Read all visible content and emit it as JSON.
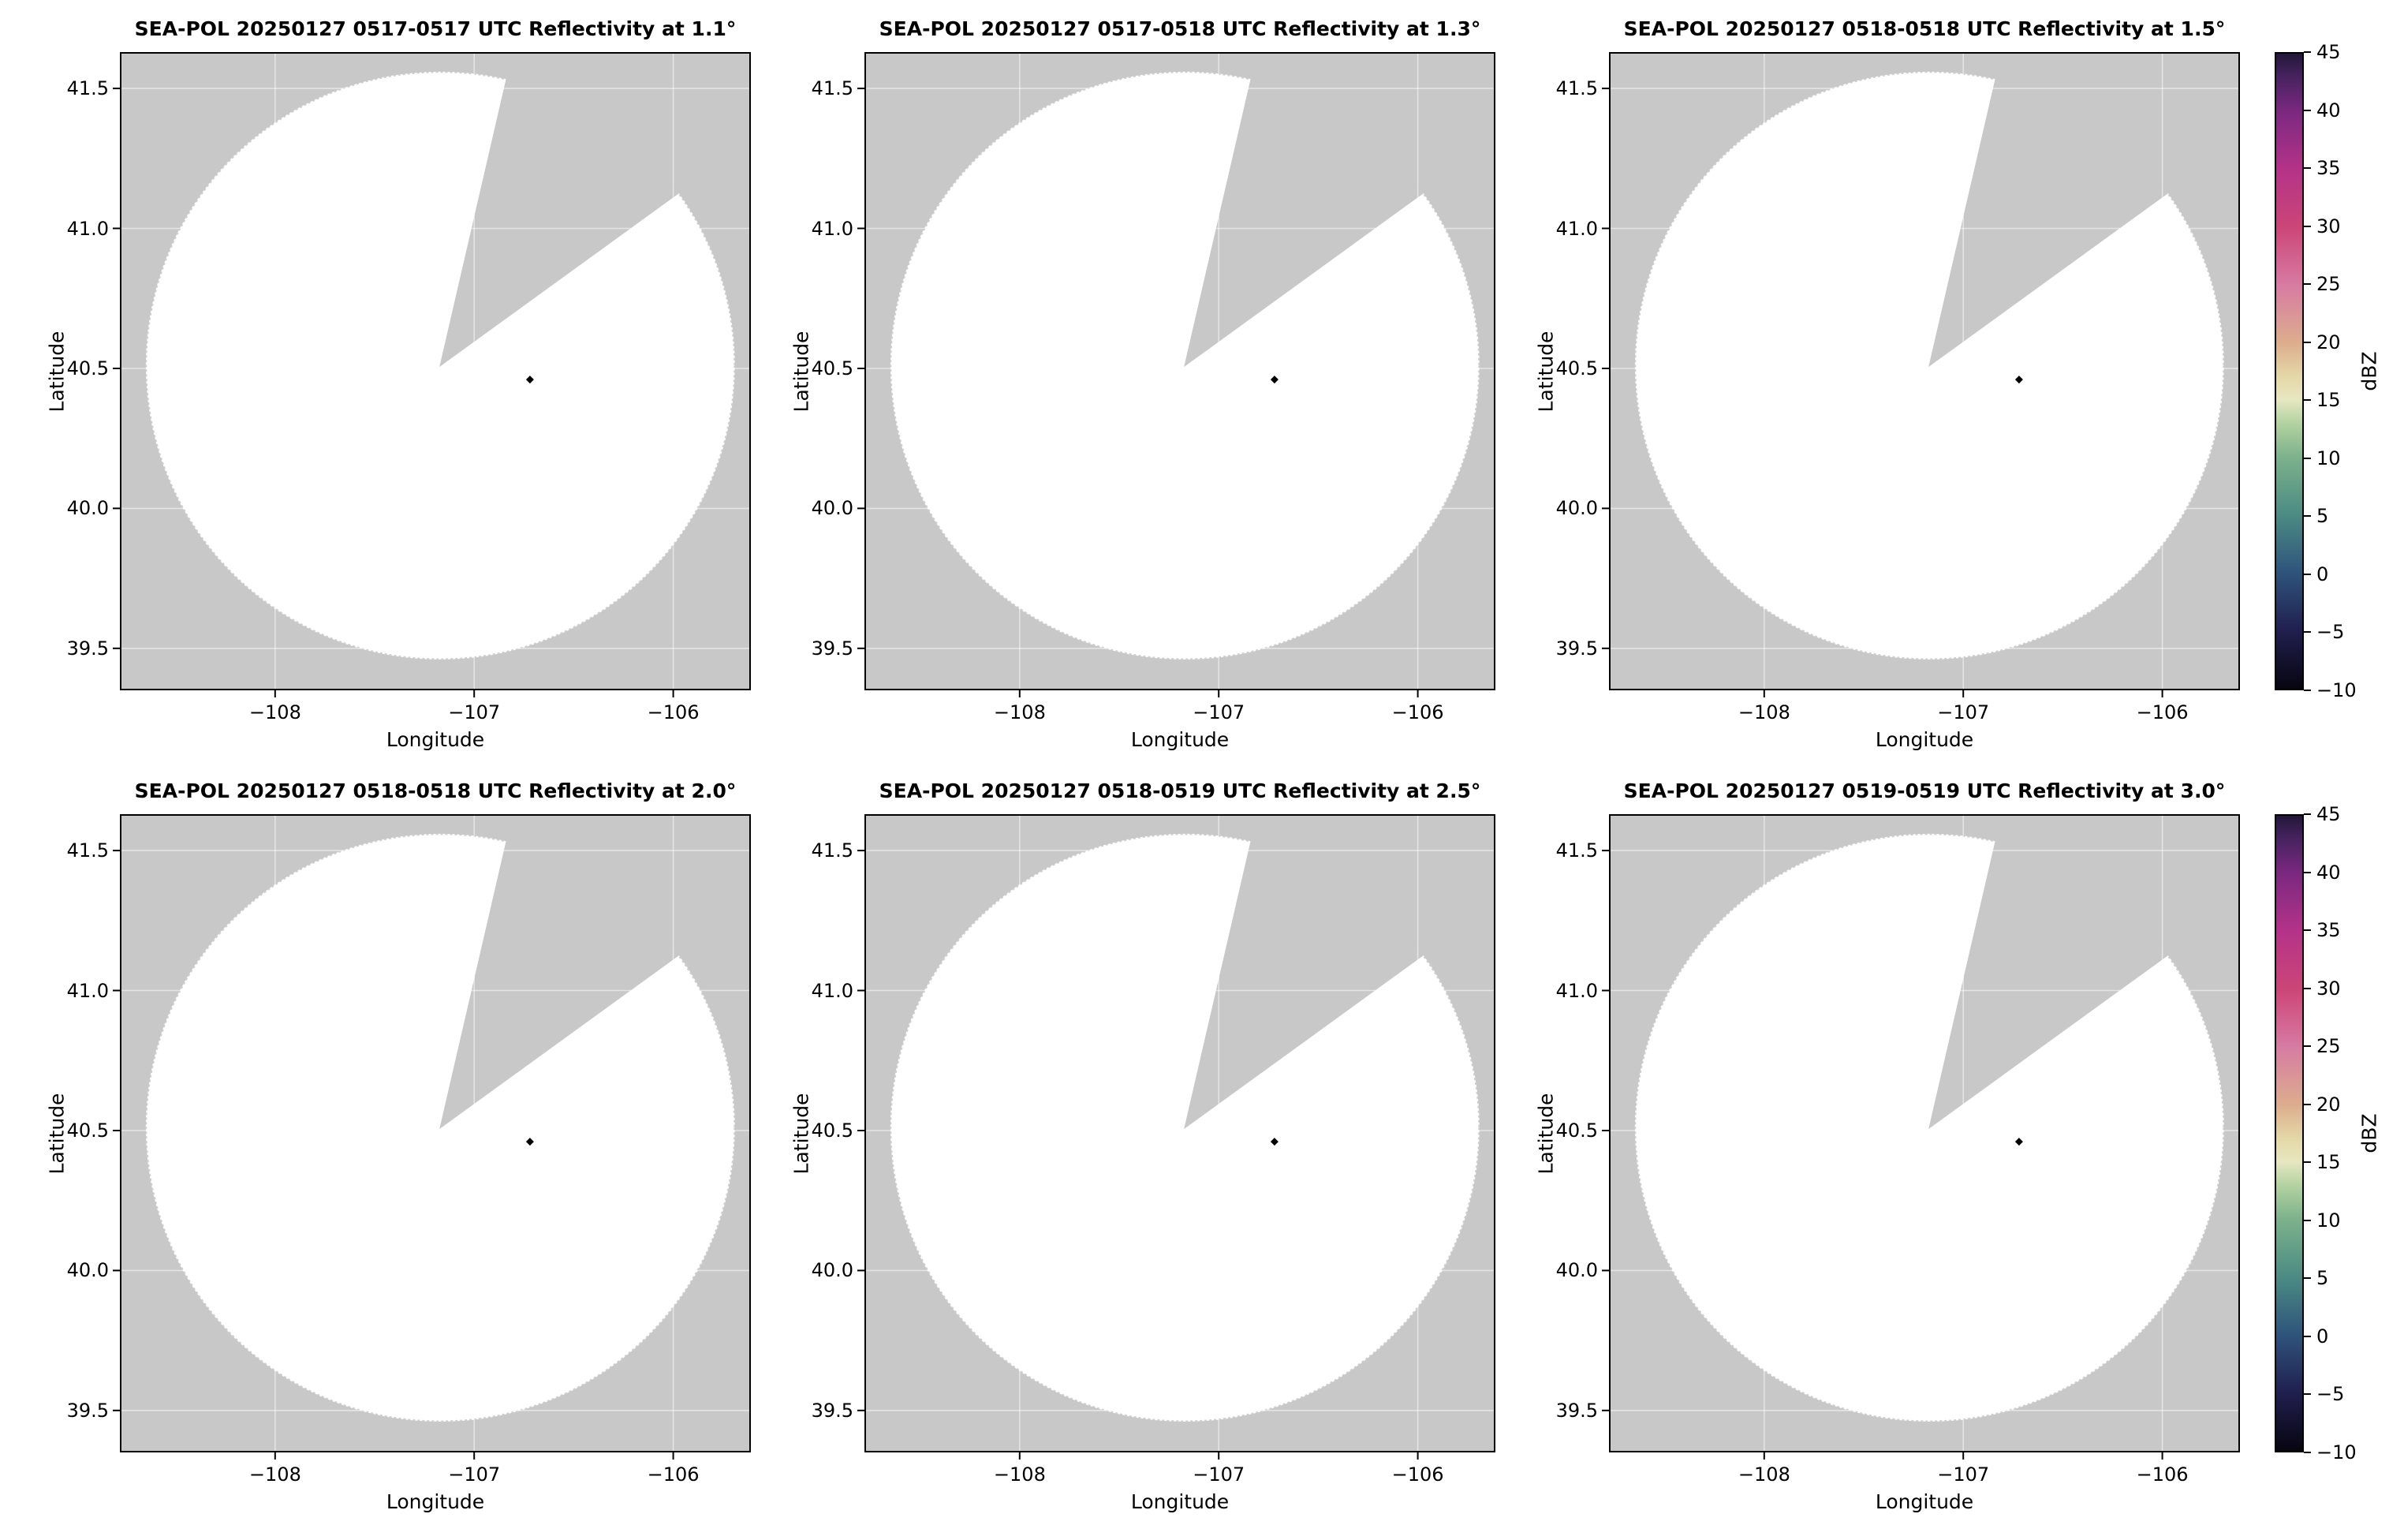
{
  "figure": {
    "xlabel": "Longitude",
    "ylabel": "Latitude",
    "x_ticks": [
      -108,
      -107,
      -106
    ],
    "x_tick_labels": [
      "−108",
      "−107",
      "−106"
    ],
    "y_ticks": [
      41.5,
      41.0,
      40.5,
      40.0,
      39.5
    ],
    "y_tick_labels": [
      "41.5",
      "41.0",
      "40.5",
      "40.0",
      "39.5"
    ],
    "xlim": [
      -108.78,
      -105.61
    ],
    "ylim": [
      39.35,
      41.63
    ],
    "colors": {
      "no_data_gray": "#c8c8c8",
      "coverage_white": "#ffffff",
      "marker_black": "#000000"
    },
    "colorbar": {
      "label": "dBZ",
      "min": -10,
      "max": 45,
      "ticks": [
        45,
        40,
        35,
        30,
        25,
        20,
        15,
        10,
        5,
        0,
        -5,
        -10
      ],
      "tick_labels": [
        "45",
        "40",
        "35",
        "30",
        "25",
        "20",
        "15",
        "10",
        "5",
        "0",
        "−5",
        "−10"
      ],
      "stops": [
        {
          "value": -10,
          "color": "#070510"
        },
        {
          "value": -5,
          "color": "#201f4e"
        },
        {
          "value": 0,
          "color": "#2e537b"
        },
        {
          "value": 5,
          "color": "#4b8b83"
        },
        {
          "value": 10,
          "color": "#7cb18b"
        },
        {
          "value": 13,
          "color": "#b3d2a0"
        },
        {
          "value": 15,
          "color": "#e7e7c0"
        },
        {
          "value": 17,
          "color": "#e5d8a7"
        },
        {
          "value": 20,
          "color": "#dcad8d"
        },
        {
          "value": 25,
          "color": "#d77ba3"
        },
        {
          "value": 30,
          "color": "#cc4577"
        },
        {
          "value": 35,
          "color": "#b43388"
        },
        {
          "value": 40,
          "color": "#7b2880"
        },
        {
          "value": 43,
          "color": "#46235f"
        },
        {
          "value": 45,
          "color": "#221739"
        }
      ]
    }
  },
  "chart_data": {
    "type": "heatmap",
    "description": "2x3 grid of SEA-POL radar PPI reflectivity maps at increasing elevation angles. No precipitation echoes are present: each panel shows the white radar coverage circle over a gray no-data background, with a gray missing-data pie sector to the north-northeast and a small black site marker dot.",
    "panels": [
      {
        "title": "SEA-POL 20250127 0517-0517 UTC Reflectivity at 1.1°",
        "radar": "SEA-POL",
        "date": "20250127",
        "time_utc": "0517-0517",
        "elevation_deg": 1.1,
        "echoes": "none"
      },
      {
        "title": "SEA-POL 20250127 0517-0518 UTC Reflectivity at 1.3°",
        "radar": "SEA-POL",
        "date": "20250127",
        "time_utc": "0517-0518",
        "elevation_deg": 1.3,
        "echoes": "none"
      },
      {
        "title": "SEA-POL 20250127 0518-0518 UTC Reflectivity at 1.5°",
        "radar": "SEA-POL",
        "date": "20250127",
        "time_utc": "0518-0518",
        "elevation_deg": 1.5,
        "echoes": "none"
      },
      {
        "title": "SEA-POL 20250127 0518-0518 UTC Reflectivity at 2.0°",
        "radar": "SEA-POL",
        "date": "20250127",
        "time_utc": "0518-0518",
        "elevation_deg": 2.0,
        "echoes": "none"
      },
      {
        "title": "SEA-POL 20250127 0518-0519 UTC Reflectivity at 2.5°",
        "radar": "SEA-POL",
        "date": "20250127",
        "time_utc": "0518-0519",
        "elevation_deg": 2.5,
        "echoes": "none"
      },
      {
        "title": "SEA-POL 20250127 0519-0519 UTC Reflectivity at 3.0°",
        "radar": "SEA-POL",
        "date": "20250127",
        "time_utc": "0519-0519",
        "elevation_deg": 3.0,
        "echoes": "none"
      }
    ],
    "xlabel": "Longitude",
    "ylabel": "Latitude",
    "xlim": [
      -108.78,
      -105.61
    ],
    "ylim": [
      39.35,
      41.63
    ],
    "x_ticks": [
      -108,
      -107,
      -106
    ],
    "y_ticks": [
      39.5,
      40.0,
      40.5,
      41.0,
      41.5
    ],
    "colorbar": {
      "label": "dBZ",
      "range": [
        -10,
        45
      ],
      "tick_step": 5
    },
    "radar_coverage": {
      "center_lon": -107.17,
      "center_lat": 40.51,
      "radius_lon_deg": 1.48,
      "radius_lat_deg": 1.05,
      "missing_sector_azimuth_deg": [
        13,
        54
      ],
      "site_marker": {
        "lon": -106.72,
        "lat": 40.46
      }
    },
    "values": "no reflectivity values above display threshold in any panel"
  }
}
